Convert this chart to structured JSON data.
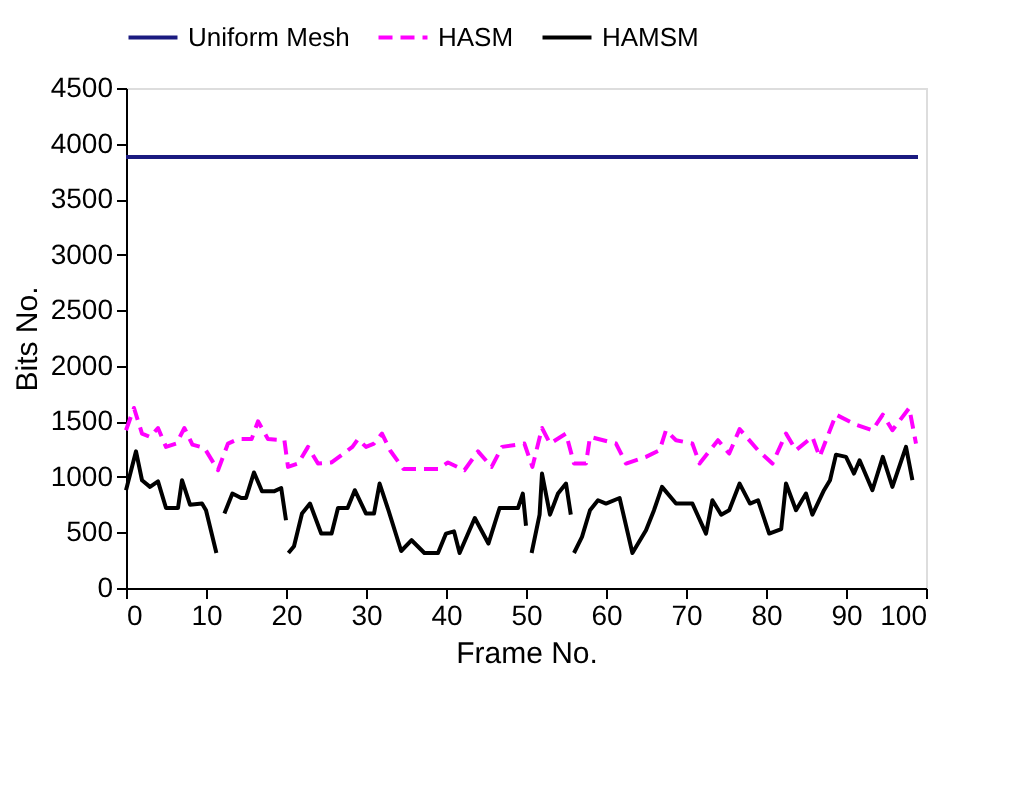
{
  "chart_data": {
    "type": "line",
    "xlabel": "Frame No.",
    "ylabel": "Bits No.",
    "xlim": [
      0,
      100
    ],
    "xticks": [
      0,
      10,
      20,
      30,
      40,
      50,
      60,
      70,
      80,
      90,
      100
    ],
    "ylim": [
      0,
      4500
    ],
    "yticks": [
      0,
      500,
      1000,
      1500,
      2000,
      2500,
      3000,
      3500,
      4000,
      4500
    ],
    "grid": false,
    "legend": "top",
    "marker": "none",
    "series": [
      {
        "name": "Uniform Mesh",
        "color": "#1a1a80",
        "line_style": "solid",
        "x": [
          0,
          99
        ],
        "values": [
          3880,
          3880
        ]
      },
      {
        "name": "HASM",
        "color": "#ff00ff",
        "line_style": "dashed",
        "x": [
          0,
          1,
          2,
          3,
          4,
          5,
          6.3,
          7.3,
          8.3,
          9.8,
          11.5,
          12.75,
          14,
          15.7,
          16.5,
          17.75,
          19.8,
          20.25,
          21.5,
          22.75,
          24,
          25.7,
          28.3,
          29,
          30,
          31,
          32,
          33,
          34.7,
          39,
          40.25,
          42.3,
          44,
          45.7,
          47,
          49.8,
          50.8,
          52,
          53,
          55,
          56,
          57.5,
          58,
          61.25,
          62.5,
          65,
          66.7,
          67.5,
          68.75,
          70.8,
          71.7,
          74,
          75.4,
          76.7,
          79,
          80.8,
          82.5,
          83.75,
          85.8,
          86.7,
          88.75,
          91.25,
          93.3,
          94.6,
          95.8,
          97.9,
          98.75
        ],
        "values": [
          1420,
          1620,
          1390,
          1360,
          1440,
          1270,
          1300,
          1440,
          1290,
          1260,
          1060,
          1300,
          1340,
          1340,
          1500,
          1340,
          1330,
          1090,
          1120,
          1270,
          1120,
          1130,
          1270,
          1340,
          1270,
          1300,
          1390,
          1240,
          1070,
          1070,
          1130,
          1060,
          1230,
          1090,
          1270,
          1300,
          1090,
          1440,
          1300,
          1390,
          1120,
          1120,
          1360,
          1300,
          1120,
          1180,
          1240,
          1420,
          1330,
          1300,
          1120,
          1330,
          1210,
          1430,
          1240,
          1120,
          1390,
          1240,
          1360,
          1180,
          1560,
          1470,
          1420,
          1560,
          1420,
          1620,
          1300
        ]
      },
      {
        "name": "HAMSM",
        "color": "#000000",
        "line_style": "solid",
        "x": [
          0,
          1.25,
          2,
          3,
          4,
          5,
          6.5,
          7,
          8,
          9.5,
          10,
          11.3,
          11.8,
          12.3,
          13.3,
          14.4,
          15,
          16,
          17,
          18.5,
          19.4,
          20,
          20.1,
          20.3,
          21,
          22,
          23,
          24.4,
          25.7,
          26.5,
          27.7,
          28.6,
          30,
          31,
          31.7,
          32.8,
          34.4,
          35.7,
          37.3,
          39,
          40,
          41,
          41.7,
          43.6,
          45.3,
          46.7,
          49,
          49.6,
          50,
          50.3,
          50.7,
          51.7,
          52,
          53,
          54,
          55,
          55.6,
          55.8,
          56,
          57,
          58,
          59,
          60,
          61.7,
          63.3,
          65,
          66,
          67,
          68.75,
          70.8,
          72.5,
          73.3,
          74.4,
          75.4,
          76.7,
          78,
          79,
          80.4,
          81.9,
          82.5,
          83.75,
          85,
          85.8,
          87.25,
          88,
          88.75,
          90,
          91,
          91.7,
          93.3,
          94.6,
          95.8,
          97.5,
          98.3
        ],
        "values": [
          880,
          1230,
          970,
          910,
          960,
          720,
          720,
          970,
          750,
          760,
          700,
          315,
          null,
          670,
          850,
          810,
          810,
          1040,
          870,
          870,
          900,
          610,
          null,
          315,
          375,
          670,
          760,
          490,
          490,
          720,
          720,
          880,
          670,
          670,
          940,
          700,
          333,
          430,
          315,
          315,
          490,
          510,
          315,
          630,
          400,
          720,
          720,
          850,
          560,
          null,
          315,
          660,
          1030,
          660,
          850,
          940,
          660,
          null,
          315,
          460,
          700,
          790,
          760,
          810,
          315,
          520,
          700,
          910,
          760,
          760,
          490,
          790,
          660,
          700,
          940,
          760,
          790,
          490,
          530,
          940,
          700,
          850,
          660,
          880,
          970,
          1200,
          1180,
          1030,
          1150,
          880,
          1180,
          910,
          1270,
          970
        ]
      }
    ]
  }
}
